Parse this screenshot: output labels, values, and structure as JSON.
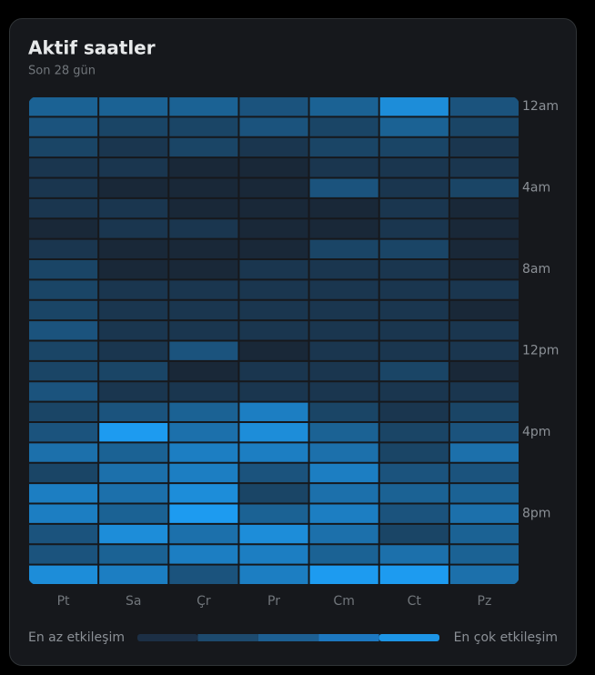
{
  "chart_data": {
    "type": "heatmap",
    "title": "Aktif saatler",
    "subtitle": "Son 28 gün",
    "categories": [
      "Pt",
      "Sa",
      "Çr",
      "Pr",
      "Cm",
      "Ct",
      "Pz"
    ],
    "rows": [
      "12am",
      null,
      null,
      null,
      "4am",
      null,
      null,
      null,
      "8am",
      null,
      null,
      null,
      "12pm",
      null,
      null,
      null,
      "4pm",
      null,
      null,
      null,
      "8pm",
      null,
      null,
      null
    ],
    "values": [
      [
        5,
        5,
        5,
        4,
        5,
        8,
        4
      ],
      [
        4,
        3,
        3,
        4,
        3,
        5,
        3
      ],
      [
        3,
        2,
        3,
        2,
        3,
        3,
        2
      ],
      [
        2,
        2,
        1,
        1,
        2,
        2,
        2
      ],
      [
        2,
        1,
        1,
        1,
        4,
        2,
        3
      ],
      [
        2,
        2,
        1,
        1,
        1,
        2,
        1
      ],
      [
        1,
        2,
        2,
        1,
        1,
        2,
        1
      ],
      [
        2,
        1,
        1,
        1,
        3,
        3,
        1
      ],
      [
        3,
        1,
        1,
        2,
        2,
        2,
        1
      ],
      [
        3,
        2,
        2,
        2,
        2,
        2,
        2
      ],
      [
        3,
        2,
        2,
        2,
        2,
        2,
        1
      ],
      [
        4,
        2,
        2,
        2,
        2,
        2,
        2
      ],
      [
        3,
        2,
        4,
        1,
        2,
        2,
        2
      ],
      [
        3,
        3,
        1,
        2,
        2,
        3,
        1
      ],
      [
        4,
        2,
        2,
        2,
        2,
        2,
        2
      ],
      [
        3,
        4,
        5,
        7,
        3,
        2,
        3
      ],
      [
        4,
        9,
        6,
        8,
        5,
        3,
        4
      ],
      [
        6,
        5,
        7,
        7,
        6,
        3,
        6
      ],
      [
        3,
        6,
        7,
        4,
        7,
        4,
        4
      ],
      [
        7,
        6,
        8,
        3,
        6,
        5,
        5
      ],
      [
        7,
        5,
        9,
        5,
        7,
        4,
        6
      ],
      [
        4,
        8,
        6,
        8,
        6,
        3,
        5
      ],
      [
        4,
        5,
        7,
        7,
        5,
        6,
        5
      ],
      [
        8,
        7,
        4,
        7,
        9,
        9,
        6
      ]
    ],
    "color_low": "#192838",
    "color_high": "#1d9bf0",
    "legend": {
      "min_label": "En az etkileşim",
      "max_label": "En çok etkileşim",
      "colors": [
        "#1c2f45",
        "#1d4a6e",
        "#1d5f92",
        "#1d78c0",
        "#1d95e6"
      ]
    }
  }
}
